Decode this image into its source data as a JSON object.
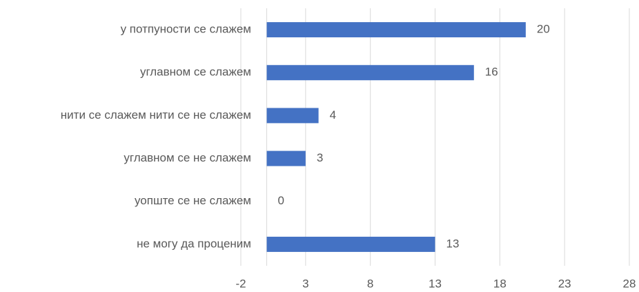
{
  "chart_data": {
    "type": "bar",
    "orientation": "horizontal",
    "categories": [
      "у потпуности се слажем",
      "углавном се слажем",
      "нити се слажем нити се не слажем",
      "углавном се не слажем",
      "уопште се не слажем",
      "не могу да проценим"
    ],
    "values": [
      20,
      16,
      4,
      3,
      0,
      13
    ],
    "color": "#4472c4",
    "xlim": [
      -2,
      28
    ],
    "xticks": [
      -2,
      3,
      8,
      13,
      18,
      23,
      28
    ],
    "grid": true
  }
}
